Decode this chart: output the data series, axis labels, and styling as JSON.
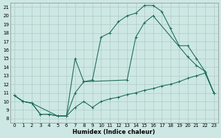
{
  "xlabel": "Humidex (Indice chaleur)",
  "bg_color": "#cde8e4",
  "grid_color": "#b0c8c4",
  "line_color": "#1a6b5a",
  "xlim": [
    -0.5,
    23.5
  ],
  "ylim": [
    7.5,
    21.5
  ],
  "xticks": [
    0,
    1,
    2,
    3,
    4,
    5,
    6,
    7,
    8,
    9,
    10,
    11,
    12,
    13,
    14,
    15,
    16,
    17,
    18,
    19,
    20,
    21,
    22,
    23
  ],
  "yticks": [
    8,
    9,
    10,
    11,
    12,
    13,
    14,
    15,
    16,
    17,
    18,
    19,
    20,
    21
  ],
  "curve1_x": [
    0,
    1,
    2,
    3,
    4,
    5,
    6,
    7,
    8,
    9,
    10,
    11,
    12,
    13,
    14,
    15,
    16,
    17,
    18,
    19,
    20,
    21,
    22,
    23
  ],
  "curve1_y": [
    10.7,
    10.0,
    9.8,
    8.5,
    8.5,
    8.3,
    8.3,
    11.0,
    12.3,
    12.5,
    17.5,
    18.0,
    19.3,
    20.0,
    20.3,
    21.2,
    21.2,
    20.5,
    18.5,
    16.5,
    16.5,
    15.0,
    13.5,
    11.0
  ],
  "curve2_x": [
    0,
    1,
    2,
    5,
    6,
    7,
    8,
    13,
    14,
    15,
    16,
    20,
    21,
    22,
    23
  ],
  "curve2_y": [
    10.7,
    10.0,
    9.8,
    8.3,
    8.3,
    15.0,
    12.3,
    12.5,
    17.5,
    19.2,
    20.0,
    15.2,
    14.2,
    13.5,
    11.0
  ],
  "curve3_x": [
    0,
    1,
    2,
    3,
    4,
    5,
    6,
    7,
    8,
    9,
    10,
    11,
    12,
    13,
    14,
    15,
    16,
    17,
    18,
    19,
    20,
    21,
    22,
    23
  ],
  "curve3_y": [
    10.7,
    10.0,
    9.8,
    8.5,
    8.5,
    8.3,
    8.3,
    9.3,
    10.0,
    9.3,
    10.0,
    10.3,
    10.5,
    10.8,
    11.0,
    11.3,
    11.5,
    11.8,
    12.0,
    12.3,
    12.7,
    13.0,
    13.3,
    11.0
  ]
}
